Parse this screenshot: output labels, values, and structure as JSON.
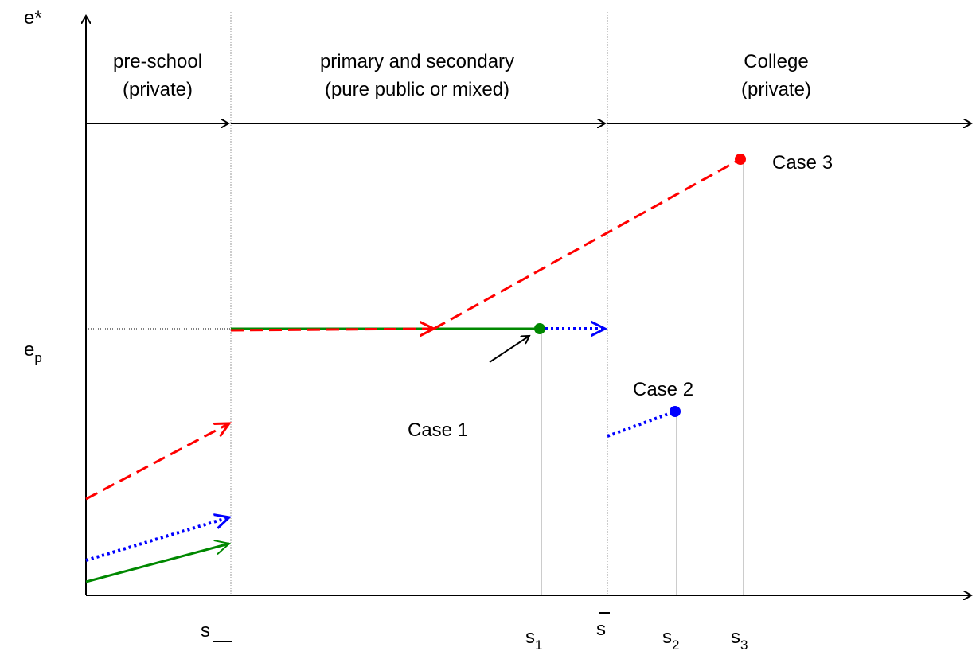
{
  "axes": {
    "y_label": "e*",
    "y_mark": {
      "base": "e",
      "sub": "p"
    },
    "x_labels": [
      {
        "base": "s"
      },
      {
        "base": "s",
        "sub": "1"
      },
      {
        "base": "s"
      },
      {
        "base": "s",
        "sub": "2"
      },
      {
        "base": "s",
        "sub": "3"
      }
    ]
  },
  "regions": [
    {
      "title": "pre-school",
      "note": "(private)"
    },
    {
      "title": "primary and secondary",
      "note": "(pure public or mixed)"
    },
    {
      "title": "College",
      "note": "(private)"
    }
  ],
  "cases": [
    "Case 1",
    "Case 2",
    "Case 3"
  ]
}
